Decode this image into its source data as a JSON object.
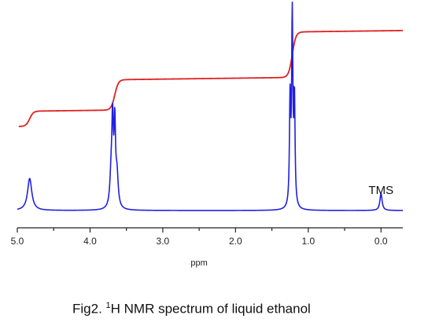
{
  "chart_data": {
    "type": "line",
    "title": "",
    "xlabel": "ppm",
    "ylabel": "",
    "xlim": [
      5.0,
      -0.3
    ],
    "x_reversed": true,
    "ticks": [
      "5.0",
      "4.0",
      "3.0",
      "2.0",
      "1.0",
      "0.0"
    ],
    "tick_values": [
      5.0,
      4.0,
      3.0,
      2.0,
      1.0,
      0.0
    ],
    "grid": false,
    "series": [
      {
        "role": "spectrum",
        "color": "#2020e0",
        "peaks": [
          {
            "center": 4.83,
            "height": 0.17,
            "width": 0.035
          },
          {
            "center": 3.71,
            "height": 0.17,
            "width": 0.02
          },
          {
            "center": 3.69,
            "height": 0.42,
            "width": 0.012
          },
          {
            "center": 3.66,
            "height": 0.42,
            "width": 0.012
          },
          {
            "center": 3.63,
            "height": 0.17,
            "width": 0.02
          },
          {
            "center": 1.25,
            "height": 0.56,
            "width": 0.01
          },
          {
            "center": 1.22,
            "height": 1.0,
            "width": 0.01
          },
          {
            "center": 1.19,
            "height": 0.56,
            "width": 0.01
          },
          {
            "center": 0.0,
            "height": 0.09,
            "width": 0.018
          }
        ]
      },
      {
        "role": "integral",
        "color": "#e02020",
        "steps": [
          {
            "center": 4.83,
            "rise": 1
          },
          {
            "center": 3.66,
            "rise": 2
          },
          {
            "center": 1.22,
            "rise": 3
          }
        ]
      }
    ],
    "annotations": [
      {
        "text": "TMS",
        "x": 0.0
      }
    ]
  },
  "caption": {
    "prefix": "Fig2. ",
    "superscript": "1",
    "rest": "H NMR spectrum of liquid ethanol"
  }
}
